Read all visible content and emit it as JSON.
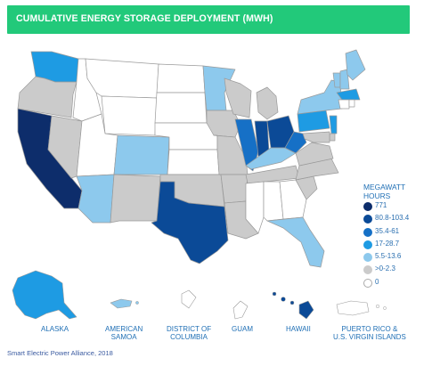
{
  "title": "CUMULATIVE ENERGY STORAGE DEPLOYMENT (MWH)",
  "colors": {
    "banner": "#22c97a",
    "c771": "#0d2d6b",
    "c80": "#0b4a97",
    "c35": "#1670c6",
    "c17": "#1e9be3",
    "c5": "#8dc9ed",
    "c0": "#cbcbcb",
    "czero": "#ffffff",
    "stroke": "#9a9a9a"
  },
  "legend": {
    "title_line1": "MEGAWATT",
    "title_line2": "HOURS",
    "items": [
      {
        "label": "771",
        "color": "#0d2d6b"
      },
      {
        "label": "80.8-103.4",
        "color": "#0b4a97"
      },
      {
        "label": "35.4-61",
        "color": "#1670c6"
      },
      {
        "label": "17-28.7",
        "color": "#1e9be3"
      },
      {
        "label": "5.5-13.6",
        "color": "#8dc9ed"
      },
      {
        "label": ">0-2.3",
        "color": "#cbcbcb"
      },
      {
        "label": "0",
        "color": "#ffffff"
      }
    ]
  },
  "states": {
    "WA": "17-28.7",
    "OR": ">0-2.3",
    "CA": "771",
    "NV": ">0-2.3",
    "ID": "0",
    "MT": "0",
    "WY": "0",
    "UT": "0",
    "AZ": "5.5-13.6",
    "CO": "5.5-13.6",
    "NM": ">0-2.3",
    "ND": "0",
    "SD": "0",
    "NE": "0",
    "KS": "0",
    "OK": ">0-2.3",
    "TX": "80.8-103.4",
    "MN": "5.5-13.6",
    "IA": ">0-2.3",
    "MO": ">0-2.3",
    "AR": ">0-2.3",
    "LA": ">0-2.3",
    "WI": ">0-2.3",
    "IL": "35.4-61",
    "MI": ">0-2.3",
    "IN": "80.8-103.4",
    "OH": "80.8-103.4",
    "KY": "5.5-13.6",
    "TN": ">0-2.3",
    "MS": "0",
    "AL": "0",
    "GA": "0",
    "FL": "5.5-13.6",
    "SC": ">0-2.3",
    "NC": ">0-2.3",
    "VA": ">0-2.3",
    "WV": "35.4-61",
    "PA": "17-28.7",
    "NY": "5.5-13.6",
    "VT": "5.5-13.6",
    "NH": "5.5-13.6",
    "ME": "5.5-13.6",
    "MA": "17-28.7",
    "CT": "0",
    "RI": "0",
    "NJ": "17-28.7",
    "DE": ">0-2.3",
    "MD": ">0-2.3",
    "AK": "17-28.7",
    "HI": "80.8-103.4"
  },
  "territories": {
    "alaska": "ALASKA",
    "samoa_line1": "AMERICAN",
    "samoa_line2": "SAMOA",
    "dc_line1": "DISTRICT OF",
    "dc_line2": "COLUMBIA",
    "guam": "GUAM",
    "hawaii": "HAWAII",
    "pr_line1": "PUERTO RICO &",
    "pr_line2": "U.S. VIRGIN ISLANDS"
  },
  "source": "Smart Electric Power Alliance, 2018"
}
